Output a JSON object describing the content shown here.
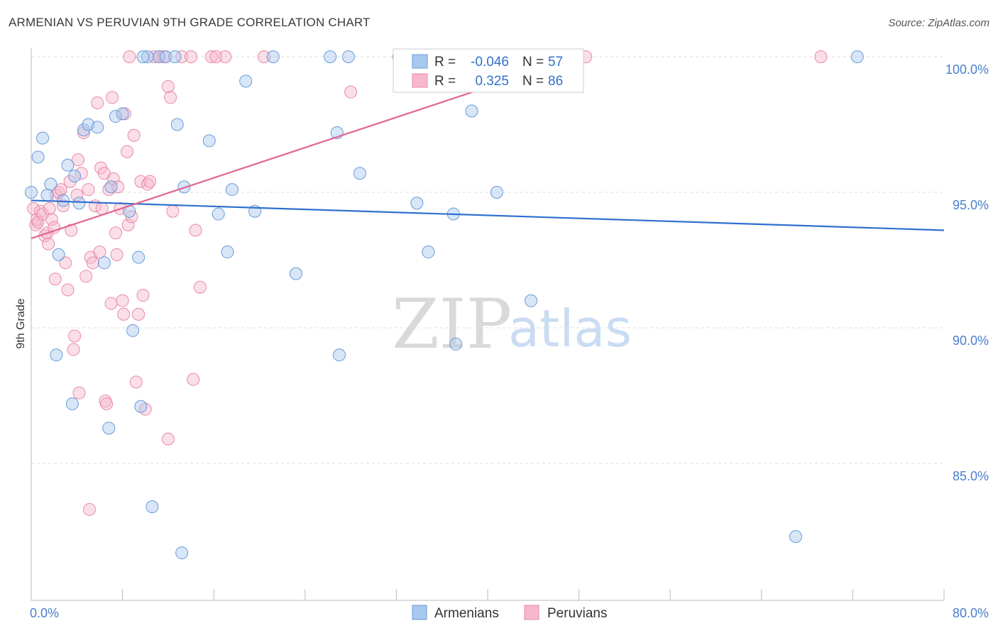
{
  "title": "ARMENIAN VS PERUVIAN 9TH GRADE CORRELATION CHART",
  "source": "Source: ZipAtlas.com",
  "watermark": {
    "part1": "ZIP",
    "part2": "atlas"
  },
  "chart_data": {
    "type": "scatter",
    "ylabel": "9th Grade",
    "xlim": [
      0,
      80
    ],
    "ylim": [
      80.5,
      100.8
    ],
    "x_tick_labels": [
      "0.0%",
      "80.0%"
    ],
    "y_ticks": [
      {
        "value": 100,
        "label": "100.0%"
      },
      {
        "value": 95,
        "label": "95.0%"
      },
      {
        "value": 90,
        "label": "90.0%"
      },
      {
        "value": 85,
        "label": "85.0%"
      }
    ],
    "legend": {
      "r_label": "R =",
      "n_label": "N =",
      "rows": [
        {
          "name": "Armenians",
          "r": "-0.046",
          "n": "57"
        },
        {
          "name": "Peruvians",
          "r": "0.325",
          "n": "86"
        }
      ]
    },
    "colors": {
      "armenians_fill": "#a9c8f0",
      "armenians_stroke": "#6a9ad8",
      "armenians_line": "#2e6fcf",
      "peruvians_fill": "#f7b8cb",
      "peruvians_stroke": "#e88aa6",
      "peruvians_line": "#e06792",
      "grid": "#dddddd"
    },
    "series": [
      {
        "name": "Armenians",
        "trend": {
          "x0": 0,
          "y0": 94.7,
          "x1": 80,
          "y1": 93.6
        },
        "points": [
          [
            0.0,
            95.0
          ],
          [
            0.6,
            96.3
          ],
          [
            1.0,
            97.0
          ],
          [
            1.4,
            94.9
          ],
          [
            1.7,
            95.3
          ],
          [
            2.4,
            92.7
          ],
          [
            2.8,
            94.7
          ],
          [
            3.2,
            96.0
          ],
          [
            3.6,
            87.2
          ],
          [
            3.8,
            95.6
          ],
          [
            4.2,
            94.6
          ],
          [
            4.6,
            97.3
          ],
          [
            5.0,
            97.5
          ],
          [
            5.8,
            97.4
          ],
          [
            6.4,
            92.4
          ],
          [
            6.8,
            86.3
          ],
          [
            7.0,
            95.2
          ],
          [
            7.4,
            97.8
          ],
          [
            8.0,
            97.9
          ],
          [
            8.6,
            94.3
          ],
          [
            8.9,
            89.9
          ],
          [
            9.4,
            92.6
          ],
          [
            9.6,
            87.1
          ],
          [
            10.2,
            100.0
          ],
          [
            10.6,
            83.4
          ],
          [
            11.2,
            100.0
          ],
          [
            11.8,
            100.0
          ],
          [
            12.6,
            100.0
          ],
          [
            12.8,
            97.5
          ],
          [
            13.2,
            81.7
          ],
          [
            13.4,
            95.2
          ],
          [
            15.6,
            96.9
          ],
          [
            16.4,
            94.2
          ],
          [
            17.2,
            92.8
          ],
          [
            17.6,
            95.1
          ],
          [
            18.8,
            99.1
          ],
          [
            19.6,
            94.3
          ],
          [
            21.2,
            100.0
          ],
          [
            23.2,
            92.0
          ],
          [
            26.2,
            100.0
          ],
          [
            26.8,
            97.2
          ],
          [
            27.0,
            89.0
          ],
          [
            27.8,
            100.0
          ],
          [
            28.8,
            95.7
          ],
          [
            32.2,
            100.0
          ],
          [
            33.8,
            94.6
          ],
          [
            34.8,
            92.8
          ],
          [
            37.0,
            94.2
          ],
          [
            37.2,
            89.4
          ],
          [
            38.6,
            98.0
          ],
          [
            40.8,
            95.0
          ],
          [
            43.8,
            91.0
          ],
          [
            47.0,
            100.0
          ],
          [
            67.0,
            82.3
          ],
          [
            72.4,
            100.0
          ],
          [
            2.2,
            89.0
          ],
          [
            9.8,
            100.0
          ]
        ]
      },
      {
        "name": "Peruvians",
        "trend": {
          "x0": 0,
          "y0": 93.3,
          "x1": 48,
          "y1": 100.0
        },
        "points": [
          [
            0.2,
            94.4
          ],
          [
            0.4,
            93.8
          ],
          [
            0.5,
            94.0
          ],
          [
            0.6,
            93.9
          ],
          [
            0.8,
            94.3
          ],
          [
            1.0,
            94.2
          ],
          [
            1.2,
            93.4
          ],
          [
            1.4,
            93.5
          ],
          [
            1.5,
            93.1
          ],
          [
            1.6,
            94.4
          ],
          [
            1.8,
            94.0
          ],
          [
            2.0,
            93.7
          ],
          [
            2.1,
            91.8
          ],
          [
            2.2,
            94.9
          ],
          [
            2.4,
            95.0
          ],
          [
            2.6,
            95.1
          ],
          [
            2.8,
            94.5
          ],
          [
            3.0,
            92.4
          ],
          [
            3.2,
            91.4
          ],
          [
            3.4,
            95.4
          ],
          [
            3.5,
            93.6
          ],
          [
            3.7,
            89.2
          ],
          [
            3.8,
            89.7
          ],
          [
            4.0,
            94.9
          ],
          [
            4.1,
            96.2
          ],
          [
            4.2,
            87.6
          ],
          [
            4.4,
            95.7
          ],
          [
            4.6,
            97.2
          ],
          [
            4.8,
            91.9
          ],
          [
            5.0,
            95.1
          ],
          [
            5.1,
            83.3
          ],
          [
            5.2,
            92.6
          ],
          [
            5.4,
            92.4
          ],
          [
            5.6,
            94.5
          ],
          [
            5.8,
            98.3
          ],
          [
            6.0,
            92.8
          ],
          [
            6.1,
            95.9
          ],
          [
            6.2,
            94.4
          ],
          [
            6.4,
            95.7
          ],
          [
            6.5,
            87.3
          ],
          [
            6.6,
            87.2
          ],
          [
            6.8,
            95.1
          ],
          [
            7.0,
            90.9
          ],
          [
            7.1,
            98.5
          ],
          [
            7.2,
            95.5
          ],
          [
            7.4,
            93.5
          ],
          [
            7.5,
            92.7
          ],
          [
            7.6,
            95.2
          ],
          [
            7.8,
            94.4
          ],
          [
            8.0,
            91.0
          ],
          [
            8.1,
            90.5
          ],
          [
            8.2,
            97.9
          ],
          [
            8.4,
            96.5
          ],
          [
            8.5,
            93.8
          ],
          [
            8.8,
            94.1
          ],
          [
            9.0,
            97.1
          ],
          [
            9.2,
            88.0
          ],
          [
            9.4,
            90.5
          ],
          [
            9.6,
            95.4
          ],
          [
            9.8,
            91.2
          ],
          [
            10.0,
            87.0
          ],
          [
            10.2,
            95.3
          ],
          [
            10.4,
            95.4
          ],
          [
            10.8,
            100.0
          ],
          [
            11.2,
            100.0
          ],
          [
            11.6,
            100.0
          ],
          [
            12.0,
            85.9
          ],
          [
            12.0,
            98.9
          ],
          [
            12.2,
            98.5
          ],
          [
            12.4,
            94.3
          ],
          [
            13.2,
            100.0
          ],
          [
            14.0,
            100.0
          ],
          [
            14.2,
            88.1
          ],
          [
            14.4,
            93.6
          ],
          [
            14.8,
            91.5
          ],
          [
            15.8,
            100.0
          ],
          [
            16.2,
            100.0
          ],
          [
            17.0,
            100.0
          ],
          [
            20.4,
            100.0
          ],
          [
            28.0,
            98.7
          ],
          [
            35.0,
            100.0
          ],
          [
            38.8,
            100.0
          ],
          [
            46.8,
            99.6
          ],
          [
            48.6,
            100.0
          ],
          [
            69.2,
            100.0
          ],
          [
            8.6,
            100.0
          ]
        ]
      }
    ]
  }
}
